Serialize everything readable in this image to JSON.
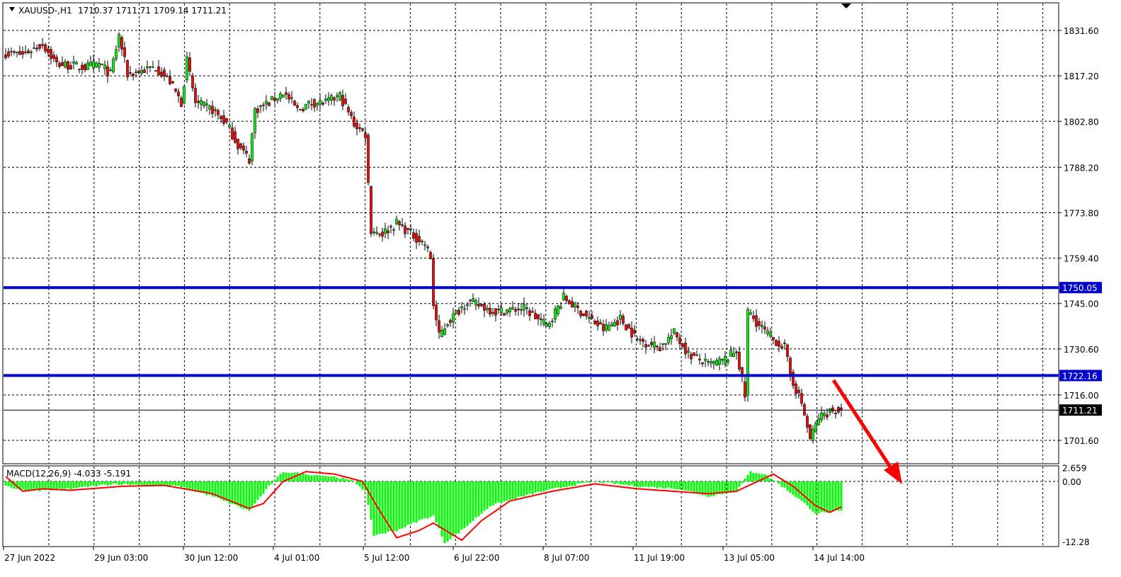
{
  "header": {
    "symbol": "XAUUSD-,H1",
    "ohlc": "1710.37 1711.71 1709.14 1711.21"
  },
  "chart_data": [
    {
      "type": "candlestick",
      "symbol": "XAUUSD-",
      "timeframe": "H1",
      "ylim": [
        1695.5,
        1839.5
      ],
      "y_ticks": [
        "1831.60",
        "1817.20",
        "1802.80",
        "1788.20",
        "1773.80",
        "1759.40",
        "1745.00",
        "1730.60",
        "1716.00",
        "1701.60"
      ],
      "x_ticks": [
        "27 Jun 2022",
        "29 Jun 03:00",
        "30 Jun 12:00",
        "4 Jul 01:00",
        "5 Jul 12:00",
        "6 Jul 22:00",
        "8 Jul 07:00",
        "11 Jul 19:00",
        "13 Jul 05:00",
        "14 Jul 14:00"
      ],
      "bars_between_ticks": 32,
      "grid": true,
      "close_path_bar_price": [
        [
          0,
          1824.4
        ],
        [
          6,
          1824.0
        ],
        [
          13,
          1827.3
        ],
        [
          18,
          1821.0
        ],
        [
          28,
          1819.9
        ],
        [
          33,
          1821.0
        ],
        [
          37,
          1817.7
        ],
        [
          40,
          1830.0
        ],
        [
          43,
          1817.7
        ],
        [
          53,
          1819.9
        ],
        [
          58,
          1815.4
        ],
        [
          62,
          1808.7
        ],
        [
          64,
          1822.0
        ],
        [
          67,
          1808.7
        ],
        [
          73,
          1806.4
        ],
        [
          78,
          1802.0
        ],
        [
          82,
          1795.2
        ],
        [
          86,
          1790.7
        ],
        [
          88,
          1806.4
        ],
        [
          93,
          1808.7
        ],
        [
          98,
          1812.0
        ],
        [
          103,
          1806.4
        ],
        [
          108,
          1808.7
        ],
        [
          113,
          1808.7
        ],
        [
          118,
          1810.9
        ],
        [
          123,
          1802.0
        ],
        [
          127,
          1798.6
        ],
        [
          128,
          1782.9
        ],
        [
          129,
          1768.3
        ],
        [
          133,
          1767.2
        ],
        [
          138,
          1770.5
        ],
        [
          143,
          1767.2
        ],
        [
          148,
          1763.8
        ],
        [
          150,
          1759.4
        ],
        [
          151,
          1744.7
        ],
        [
          153,
          1734.6
        ],
        [
          156,
          1739.1
        ],
        [
          163,
          1745.8
        ],
        [
          173,
          1742.4
        ],
        [
          183,
          1743.5
        ],
        [
          191,
          1737.9
        ],
        [
          197,
          1746.9
        ],
        [
          203,
          1742.4
        ],
        [
          211,
          1736.8
        ],
        [
          217,
          1740.2
        ],
        [
          223,
          1733.5
        ],
        [
          231,
          1731.2
        ],
        [
          236,
          1735.7
        ],
        [
          241,
          1729.0
        ],
        [
          248,
          1725.6
        ],
        [
          253,
          1726.7
        ],
        [
          258,
          1730.1
        ],
        [
          261,
          1715.5
        ],
        [
          262,
          1742.5
        ],
        [
          266,
          1738.0
        ],
        [
          271,
          1733.5
        ],
        [
          275,
          1731.2
        ],
        [
          277,
          1722.3
        ],
        [
          281,
          1713.3
        ],
        [
          284,
          1702.0
        ],
        [
          287,
          1708.8
        ],
        [
          291,
          1711.0
        ],
        [
          295,
          1711.21
        ]
      ],
      "horizontal_lines": [
        {
          "price": 1750.05,
          "label": "1750.05",
          "color": "#0000cc"
        },
        {
          "price": 1722.16,
          "label": "1722.16",
          "color": "#0000cc"
        }
      ],
      "current_price": {
        "price": 1711.21,
        "label": "1711.21"
      },
      "colors": {
        "bull": "#00ff00",
        "bear": "#ff0000",
        "arrow": "#ff0000"
      }
    },
    {
      "type": "macd",
      "title": "MACD(12,26,9) -4.033 -5.191",
      "ylim": [
        -12.28,
        2.659
      ],
      "y_ticks": [
        "2.659",
        "0.00",
        "-12.28"
      ],
      "histogram_bar_value": [
        [
          0,
          -1
        ],
        [
          8,
          -2
        ],
        [
          23,
          -1.5
        ],
        [
          38,
          -0.5
        ],
        [
          61,
          -1
        ],
        [
          73,
          -3
        ],
        [
          86,
          -6
        ],
        [
          93,
          -1
        ],
        [
          98,
          2
        ],
        [
          106,
          1.5
        ],
        [
          116,
          1
        ],
        [
          123,
          0
        ],
        [
          127,
          -2
        ],
        [
          130,
          -11
        ],
        [
          138,
          -10
        ],
        [
          146,
          -8
        ],
        [
          151,
          -7
        ],
        [
          155,
          -12.5
        ],
        [
          161,
          -10
        ],
        [
          171,
          -5
        ],
        [
          186,
          -2.5
        ],
        [
          198,
          -1
        ],
        [
          208,
          0
        ],
        [
          223,
          -1
        ],
        [
          238,
          -1.5
        ],
        [
          248,
          -3
        ],
        [
          258,
          -2
        ],
        [
          263,
          2
        ],
        [
          268,
          1.5
        ],
        [
          273,
          -0.5
        ],
        [
          281,
          -4
        ],
        [
          286,
          -6.5
        ],
        [
          295,
          -6
        ]
      ],
      "signal_bar_value": [
        [
          0,
          1
        ],
        [
          6,
          -2
        ],
        [
          13,
          -1.5
        ],
        [
          23,
          -1.8
        ],
        [
          41,
          -1
        ],
        [
          56,
          -0.8
        ],
        [
          73,
          -2.5
        ],
        [
          86,
          -5.5
        ],
        [
          91,
          -4.5
        ],
        [
          98,
          0
        ],
        [
          106,
          2
        ],
        [
          116,
          1.5
        ],
        [
          126,
          0
        ],
        [
          131,
          -5
        ],
        [
          138,
          -11.5
        ],
        [
          146,
          -10
        ],
        [
          151,
          -8.5
        ],
        [
          161,
          -12
        ],
        [
          168,
          -8
        ],
        [
          178,
          -4
        ],
        [
          193,
          -2
        ],
        [
          208,
          -0.5
        ],
        [
          223,
          -1.5
        ],
        [
          248,
          -2.5
        ],
        [
          258,
          -2
        ],
        [
          271,
          1.5
        ],
        [
          278,
          -1
        ],
        [
          286,
          -5
        ],
        [
          291,
          -6.3
        ],
        [
          295,
          -5.2
        ]
      ],
      "colors": {
        "histogram": "#00ff00",
        "signal": "#ff0000"
      }
    }
  ]
}
